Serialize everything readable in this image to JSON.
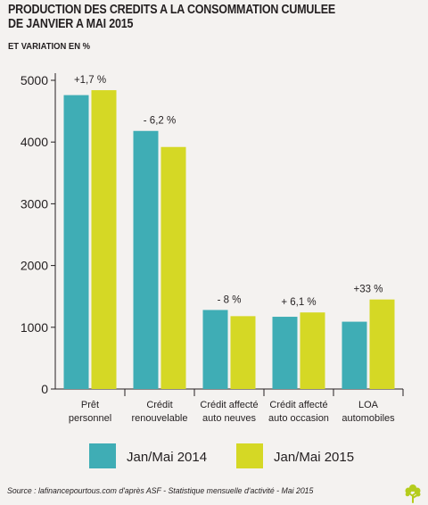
{
  "title_lines": [
    "PRODUCTION DES CREDITS A LA CONSOMMATION CUMULEE",
    "DE JANVIER A MAI 2015"
  ],
  "subtitle": "ET VARIATION EN %",
  "source": "Source : lafinancepourtous.com d'après ASF - Statistique mensuelle d'activité - Mai 2015",
  "colors": {
    "series_2014": "#3fadb5",
    "series_2015": "#d5d825",
    "background": "#f4f2f0",
    "text": "#231f20",
    "logo": "#b5cc1c"
  },
  "logo_icon": "tree-icon",
  "chart_data": {
    "type": "bar",
    "title": "PRODUCTION DES CREDITS A LA CONSOMMATION CUMULEE DE JANVIER A MAI 2015",
    "subtitle": "ET VARIATION EN %",
    "xlabel": "",
    "ylabel": "",
    "ylim": [
      0,
      5000
    ],
    "yticks": [
      0,
      1000,
      2000,
      3000,
      4000,
      5000
    ],
    "grid": false,
    "legend": "bottom",
    "categories": [
      [
        "Prêt",
        "personnel"
      ],
      [
        "Crédit",
        "renouvelable"
      ],
      [
        "Crédit affecté",
        "auto neuves"
      ],
      [
        "Crédit affecté",
        "auto occasion"
      ],
      [
        "LOA",
        "automobiles"
      ]
    ],
    "series": [
      {
        "name": "Jan/Mai 2014",
        "values": [
          4760,
          4180,
          1280,
          1170,
          1090
        ]
      },
      {
        "name": "Jan/Mai 2015",
        "values": [
          4840,
          3920,
          1180,
          1240,
          1450
        ]
      }
    ],
    "annotations": [
      "+1,7 %",
      "- 6,2 %",
      "- 8 %",
      "+ 6,1 %",
      "+33 %"
    ]
  }
}
